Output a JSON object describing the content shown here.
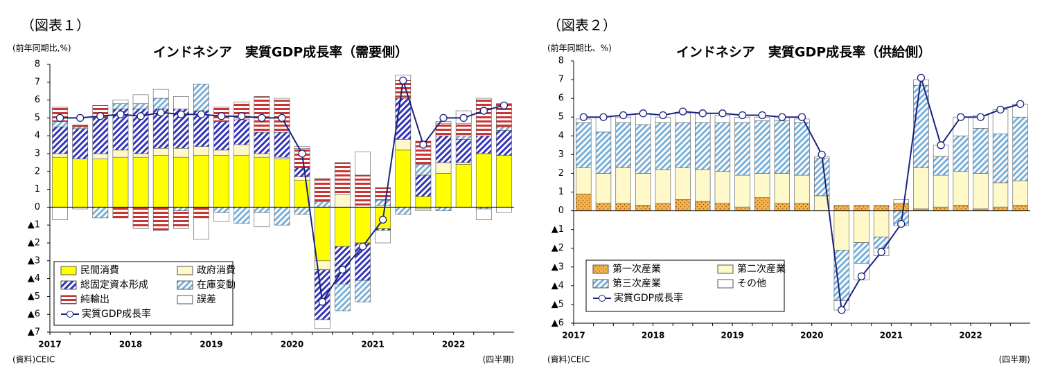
{
  "chart_data": [
    {
      "type": "bar",
      "figure": "（図表１）",
      "title": "インドネシア　実質GDP成長率（需要側）",
      "ylabel": "(前年同期比,%)",
      "source": "(資料)CEIC",
      "xlabel": "(四半期)",
      "categories": [
        "2017",
        null,
        null,
        null,
        "2018",
        null,
        null,
        null,
        "2019",
        null,
        null,
        null,
        "2020",
        null,
        null,
        null,
        "2021",
        null,
        null,
        null,
        "2022",
        null,
        null
      ],
      "ylim": [
        -7,
        8
      ],
      "yticks": [
        {
          "value": -7,
          "label": "▲7"
        },
        {
          "value": -6,
          "label": "▲6"
        },
        {
          "value": -5,
          "label": "▲5"
        },
        {
          "value": -4,
          "label": "▲4"
        },
        {
          "value": -3,
          "label": "▲3"
        },
        {
          "value": -2,
          "label": "▲2"
        },
        {
          "value": -1,
          "label": "▲1"
        },
        0,
        1,
        2,
        3,
        4,
        5,
        6,
        7,
        8
      ],
      "series": [
        {
          "name": "民間消費",
          "color": "#ffff00",
          "pattern": "solid",
          "values": [
            2.8,
            2.7,
            2.7,
            2.8,
            2.8,
            2.9,
            2.8,
            2.9,
            2.9,
            2.9,
            2.8,
            2.7,
            1.5,
            -3.0,
            -2.2,
            -2.0,
            -1.2,
            3.2,
            0.6,
            1.9,
            2.4,
            3.0,
            2.9
          ]
        },
        {
          "name": "政府消費",
          "color": "#fff8c8",
          "pattern": "solid",
          "values": [
            0.2,
            0.0,
            0.3,
            0.4,
            0.2,
            0.4,
            0.5,
            0.5,
            0.3,
            0.6,
            0.2,
            0.1,
            0.2,
            -0.5,
            0.7,
            0.0,
            0.1,
            0.6,
            -0.1,
            0.6,
            0.1,
            0.0,
            0.0
          ]
        },
        {
          "name": "総固定資本形成",
          "color": "#3333bb",
          "pattern": "diagonal",
          "values": [
            1.5,
            1.7,
            2.0,
            2.3,
            2.5,
            2.2,
            2.2,
            2.0,
            1.6,
            1.4,
            1.2,
            1.4,
            0.5,
            -2.8,
            -2.1,
            -2.1,
            -0.1,
            2.3,
            1.2,
            1.5,
            1.3,
            1.0,
            1.4
          ]
        },
        {
          "name": "在庫変動",
          "color": "#7ab0d8",
          "pattern": "diagonal",
          "values": [
            0.3,
            0.1,
            -0.6,
            0.3,
            0.3,
            0.6,
            -0.2,
            1.5,
            -0.3,
            -0.9,
            -0.3,
            -1.0,
            -0.4,
            0.3,
            -1.5,
            -1.2,
            0.3,
            -0.4,
            0.6,
            -0.2,
            0.2,
            -0.1,
            0.2
          ]
        },
        {
          "name": "純輸出",
          "color": "#cc3333",
          "pattern": "horizontal",
          "values": [
            0.8,
            0.1,
            0.7,
            -0.6,
            -1.2,
            -1.3,
            -1.0,
            -0.6,
            0.8,
            1.0,
            2.0,
            1.8,
            1.1,
            1.3,
            1.8,
            1.8,
            0.7,
            1.0,
            1.3,
            0.7,
            0.7,
            2.1,
            1.3
          ]
        },
        {
          "name": "誤差",
          "color": "#ffffff",
          "pattern": "solid",
          "values": [
            -0.7,
            -0.1,
            0.0,
            0.2,
            0.5,
            0.5,
            0.7,
            -1.2,
            -0.5,
            0.0,
            -0.8,
            0.1,
            0.1,
            -0.5,
            0.0,
            1.3,
            -0.7,
            0.3,
            -0.1,
            0.1,
            0.7,
            -0.6,
            -0.3
          ]
        },
        {
          "name": "実質GDP成長率",
          "type": "line",
          "color": "#1a237e",
          "values": [
            5.0,
            5.0,
            5.1,
            5.2,
            5.1,
            5.3,
            5.2,
            5.2,
            5.1,
            5.1,
            5.0,
            5.0,
            3.0,
            -5.3,
            -3.5,
            -2.2,
            -0.7,
            7.1,
            3.5,
            5.0,
            5.0,
            5.4,
            5.7
          ]
        }
      ]
    },
    {
      "type": "bar",
      "figure": "（図表２）",
      "title": "インドネシア　実質GDP成長率（供給側）",
      "ylabel": "(前年同期比、%)",
      "source": "(資料)CEIC",
      "xlabel": "(四半期)",
      "categories": [
        "2017",
        null,
        null,
        null,
        "2018",
        null,
        null,
        null,
        "2019",
        null,
        null,
        null,
        "2020",
        null,
        null,
        null,
        "2021",
        null,
        null,
        null,
        "2022",
        null,
        null
      ],
      "ylim": [
        -6,
        8
      ],
      "yticks": [
        {
          "value": -6,
          "label": "▲6"
        },
        {
          "value": -5,
          "label": "▲5"
        },
        {
          "value": -4,
          "label": "▲4"
        },
        {
          "value": -3,
          "label": "▲3"
        },
        {
          "value": -2,
          "label": "▲2"
        },
        {
          "value": -1,
          "label": "▲1"
        },
        0,
        1,
        2,
        3,
        4,
        5,
        6,
        7,
        8
      ],
      "series": [
        {
          "name": "第一次産業",
          "color": "#f0a020",
          "pattern": "dots",
          "values": [
            0.9,
            0.4,
            0.4,
            0.3,
            0.4,
            0.6,
            0.5,
            0.4,
            0.2,
            0.7,
            0.4,
            0.4,
            0.0,
            0.3,
            0.3,
            0.3,
            0.4,
            0.1,
            0.2,
            0.3,
            0.1,
            0.2,
            0.3
          ]
        },
        {
          "name": "第二次産業",
          "color": "#fff8c8",
          "pattern": "solid",
          "values": [
            1.4,
            1.6,
            1.9,
            1.7,
            1.8,
            1.7,
            1.7,
            1.7,
            1.7,
            1.3,
            1.6,
            1.5,
            0.8,
            -2.1,
            -1.7,
            -1.4,
            0.0,
            2.2,
            1.7,
            1.8,
            1.9,
            1.3,
            1.3
          ]
        },
        {
          "name": "第三次産業",
          "color": "#7ab0d8",
          "pattern": "diagonal",
          "values": [
            2.4,
            2.2,
            2.4,
            2.6,
            2.5,
            2.4,
            2.5,
            2.6,
            2.8,
            2.8,
            2.8,
            2.8,
            2.0,
            -2.7,
            -1.1,
            -0.6,
            -0.8,
            4.4,
            1.0,
            1.9,
            2.4,
            2.6,
            3.4
          ]
        },
        {
          "name": "その他",
          "color": "#ffffff",
          "pattern": "solid",
          "values": [
            0.2,
            0.8,
            0.3,
            0.6,
            0.3,
            0.5,
            0.5,
            0.4,
            0.3,
            0.2,
            0.2,
            0.2,
            0.1,
            -0.5,
            -0.9,
            -0.4,
            0.2,
            0.3,
            0.6,
            1.0,
            0.7,
            1.3,
            0.7
          ]
        },
        {
          "name": "実質GDP成長率",
          "type": "line",
          "color": "#1a237e",
          "values": [
            5.0,
            5.0,
            5.1,
            5.2,
            5.1,
            5.3,
            5.2,
            5.2,
            5.1,
            5.1,
            5.0,
            5.0,
            3.0,
            -5.3,
            -3.5,
            -2.2,
            -0.7,
            7.1,
            3.5,
            5.0,
            5.0,
            5.4,
            5.7
          ]
        }
      ]
    }
  ]
}
